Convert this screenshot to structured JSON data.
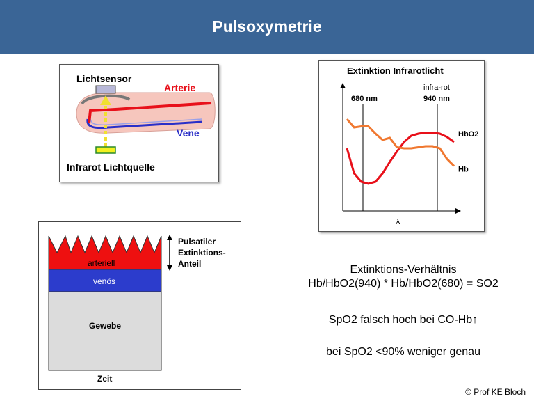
{
  "header": {
    "title": "Pulsoxymetrie"
  },
  "finger_diagram": {
    "sensor_label": "Lichtsensor",
    "artery_label": "Arterie",
    "vein_label": "Vene",
    "source_label": "Infrarot Lichtquelle",
    "colors": {
      "artery": "#e8101a",
      "vein": "#2a2fc8",
      "finger": "#f6c6bd",
      "sensor": "#b8b8d8",
      "source": "#f2f020",
      "beam": "#f0e030"
    }
  },
  "extinction_chart": {
    "title": "Extinktion Infrarotlicht",
    "marker_680": "680 nm",
    "marker_940": "940 nm",
    "infrared_label": "infra-rot",
    "xlabel": "λ"
  },
  "chart_data": {
    "type": "line",
    "title": "Extinktion Infrarotlicht",
    "xlabel": "λ",
    "ylabel": "",
    "x": [
      0,
      1,
      2,
      3,
      4,
      5,
      6,
      7,
      8,
      9,
      10,
      11,
      12,
      13,
      14,
      15
    ],
    "series": [
      {
        "name": "HbO2",
        "color": "#e8101a",
        "values": [
          5.6,
          3.2,
          2.4,
          2.2,
          2.4,
          3.2,
          4.3,
          5.3,
          6.2,
          6.8,
          7.0,
          7.1,
          7.1,
          7.0,
          6.7,
          6.2
        ]
      },
      {
        "name": "Hb",
        "color": "#f07830",
        "values": [
          8.4,
          7.6,
          7.7,
          7.7,
          7.0,
          6.4,
          6.6,
          5.7,
          5.6,
          5.6,
          5.7,
          5.8,
          5.8,
          5.6,
          4.6,
          3.9
        ]
      }
    ],
    "ylim": [
      0,
      10
    ],
    "grid": false,
    "legend": "right"
  },
  "layer_diagram": {
    "pulsatile_label_line1": "Pulsatiler",
    "pulsatile_label_line2": "Extinktions-",
    "pulsatile_label_line3": "Anteil",
    "arterial_label": "arteriell",
    "venous_label": "venös",
    "tissue_label": "Gewebe",
    "time_label": "Zeit",
    "colors": {
      "arterial": "#ee1010",
      "venous": "#2c3ccc",
      "tissue": "#dcdcdc"
    }
  },
  "ratio_block": {
    "line1": "Extinktions-Verhältnis",
    "line2": "Hb/HbO2(940) * Hb/HbO2(680) = SO2"
  },
  "notes": {
    "co_note": "SpO2 falsch hoch bei CO-Hb↑",
    "accuracy_note": "bei SpO2 <90% weniger genau"
  },
  "footer": {
    "copyright": "© Prof KE Bloch"
  }
}
